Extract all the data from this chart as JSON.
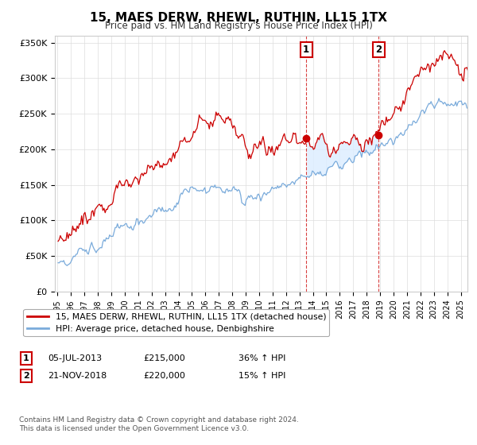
{
  "title": "15, MAES DERW, RHEWL, RUTHIN, LL15 1TX",
  "subtitle": "Price paid vs. HM Land Registry's House Price Index (HPI)",
  "legend_line1": "15, MAES DERW, RHEWL, RUTHIN, LL15 1TX (detached house)",
  "legend_line2": "HPI: Average price, detached house, Denbighshire",
  "sale1_date": "05-JUL-2013",
  "sale1_price": "£215,000",
  "sale1_hpi": "36% ↑ HPI",
  "sale2_date": "21-NOV-2018",
  "sale2_price": "£220,000",
  "sale2_hpi": "15% ↑ HPI",
  "footer": "Contains HM Land Registry data © Crown copyright and database right 2024.\nThis data is licensed under the Open Government Licence v3.0.",
  "sale1_x": 2013.5,
  "sale1_y": 215000,
  "sale2_x": 2018.9,
  "sale2_y": 220000,
  "property_color": "#cc0000",
  "hpi_color": "#7aabdb",
  "shade_color": "#ddeeff",
  "ylim": [
    0,
    360000
  ],
  "xlim_start": 1994.8,
  "xlim_end": 2025.5
}
